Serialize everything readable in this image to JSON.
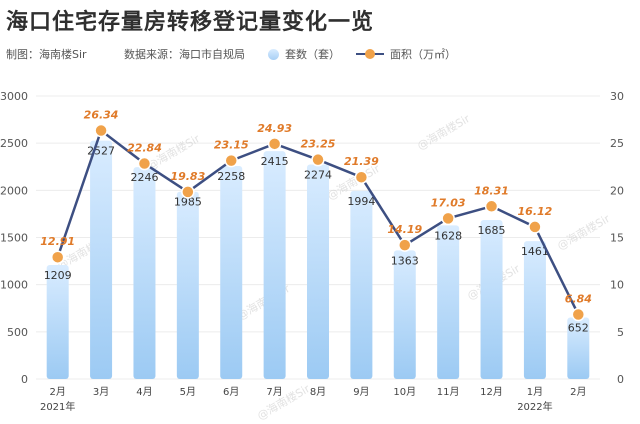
{
  "page": {
    "title": "海口住宅存量房转移登记量变化一览",
    "maker": "制图：海南楼Sir",
    "source": "数据来源：海口市自规局"
  },
  "legend": {
    "bar_label": "套数（套）",
    "line_label": "面积（万㎡）"
  },
  "watermark": "@海南楼Sir",
  "colors": {
    "bar_top": "#d9ecff",
    "bar_bottom": "#9ccaf3",
    "line": "#3d4f82",
    "point": "#f0a24a",
    "area_label": "#e07b2a",
    "count_label": "#333333"
  },
  "chart_data": {
    "type": "bar+line",
    "categories": [
      "2月",
      "3月",
      "4月",
      "5月",
      "6月",
      "7月",
      "8月",
      "9月",
      "10月",
      "11月",
      "12月",
      "1月",
      "2月"
    ],
    "year_labels": [
      {
        "index": 0,
        "text": "2021年"
      },
      {
        "index": 11,
        "text": "2022年"
      }
    ],
    "series": [
      {
        "name": "套数（套）",
        "type": "bar",
        "axis": "left",
        "values": [
          1209,
          2527,
          2246,
          1985,
          2258,
          2415,
          2274,
          1994,
          1363,
          1628,
          1685,
          1461,
          652
        ]
      },
      {
        "name": "面积（万㎡）",
        "type": "line",
        "axis": "right",
        "values": [
          12.91,
          26.34,
          22.84,
          19.83,
          23.15,
          24.93,
          23.25,
          21.39,
          14.19,
          17.03,
          18.31,
          16.12,
          6.84
        ]
      }
    ],
    "y_left": {
      "range": [
        0,
        3000
      ],
      "ticks": [
        0,
        500,
        1000,
        1500,
        2000,
        2500,
        3000
      ]
    },
    "y_right": {
      "range": [
        0,
        30
      ],
      "ticks": [
        0,
        5,
        10,
        15,
        20,
        25,
        30
      ]
    }
  }
}
